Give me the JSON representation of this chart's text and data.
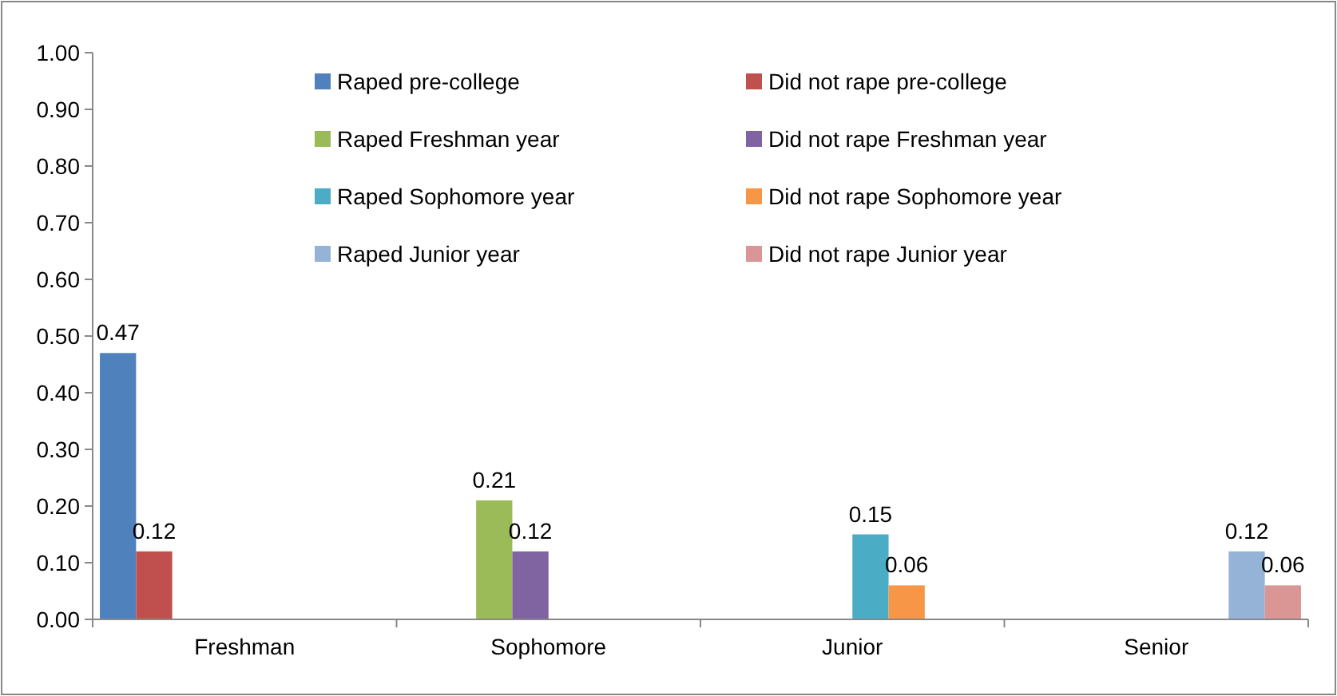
{
  "chart_data": {
    "type": "bar",
    "categories": [
      "Freshman",
      "Sophomore",
      "Junior",
      "Senior"
    ],
    "series": [
      {
        "name": "Raped pre-college",
        "color": "#4f81bd",
        "values": [
          0.47,
          null,
          null,
          null
        ]
      },
      {
        "name": "Did not rape pre-college",
        "color": "#c0504d",
        "values": [
          0.12,
          null,
          null,
          null
        ]
      },
      {
        "name": "Raped Freshman year",
        "color": "#9bbb59",
        "values": [
          null,
          0.21,
          null,
          null
        ]
      },
      {
        "name": "Did not rape Freshman year",
        "color": "#8064a2",
        "values": [
          null,
          0.12,
          null,
          null
        ]
      },
      {
        "name": "Raped Sophomore year",
        "color": "#4bacc6",
        "values": [
          null,
          null,
          0.15,
          null
        ]
      },
      {
        "name": "Did not rape Sophomore year",
        "color": "#f79646",
        "values": [
          null,
          null,
          0.06,
          null
        ]
      },
      {
        "name": "Raped Junior year",
        "color": "#95b3d7",
        "values": [
          null,
          null,
          null,
          0.12
        ]
      },
      {
        "name": "Did not rape Junior year",
        "color": "#d99694",
        "values": [
          null,
          null,
          null,
          0.06
        ]
      }
    ],
    "ylim": [
      0,
      1
    ],
    "yticks": [
      {
        "value": 0,
        "label": "0.00"
      },
      {
        "value": 0.1,
        "label": "0.10"
      },
      {
        "value": 0.2,
        "label": "0.20"
      },
      {
        "value": 0.3,
        "label": "0.30"
      },
      {
        "value": 0.4,
        "label": "0.40"
      },
      {
        "value": 0.5,
        "label": "0.50"
      },
      {
        "value": 0.6,
        "label": "0.60"
      },
      {
        "value": 0.7,
        "label": "0.70"
      },
      {
        "value": 0.8,
        "label": "0.80"
      },
      {
        "value": 0.9,
        "label": "0.90"
      },
      {
        "value": 1,
        "label": "1.00"
      }
    ],
    "data_labels": true,
    "legend": "top",
    "grid": false
  }
}
